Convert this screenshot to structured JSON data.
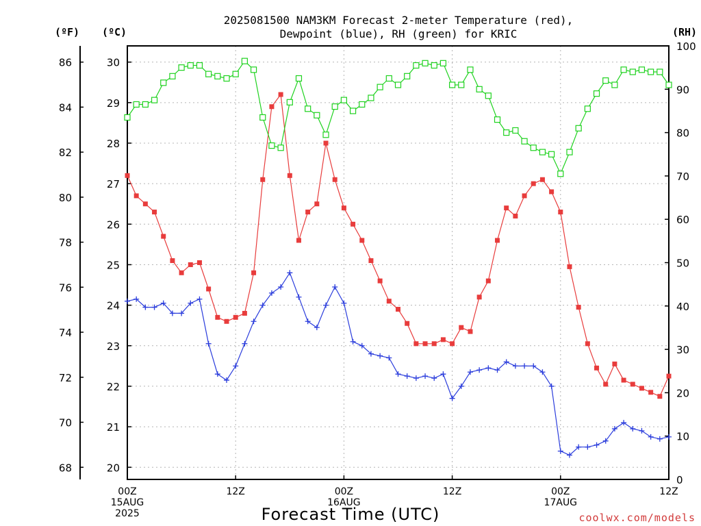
{
  "chart_data": {
    "type": "line",
    "title_line1": "2025081500 NAM3KM Forecast 2-meter Temperature (red),",
    "title_line2": "Dewpoint (blue), RH (green) for KRIC",
    "units": {
      "fahrenheit": "(ºF)",
      "celsius": "(ºC)",
      "rh": "(RH)"
    },
    "xlabel": "Forecast Time (UTC)",
    "credit": "coolwx.com/models",
    "x_range_hours": [
      0,
      60
    ],
    "x_ticks": [
      {
        "hour": 0,
        "lines": [
          "00Z",
          "15AUG",
          "2025"
        ]
      },
      {
        "hour": 12,
        "lines": [
          "12Z"
        ]
      },
      {
        "hour": 24,
        "lines": [
          "00Z",
          "16AUG"
        ]
      },
      {
        "hour": 36,
        "lines": [
          "12Z"
        ]
      },
      {
        "hour": 48,
        "lines": [
          "00Z",
          "17AUG"
        ]
      },
      {
        "hour": 60,
        "lines": [
          "12Z"
        ]
      }
    ],
    "celsius_axis": {
      "range": [
        19.7,
        30.4
      ],
      "ticks": [
        20,
        21,
        22,
        23,
        24,
        25,
        26,
        27,
        28,
        29,
        30
      ]
    },
    "fahrenheit_axis": {
      "ticks": [
        68,
        70,
        72,
        74,
        76,
        78,
        80,
        82,
        84,
        86
      ]
    },
    "rh_axis": {
      "range": [
        0,
        100
      ],
      "ticks": [
        0,
        10,
        20,
        30,
        40,
        50,
        60,
        70,
        80,
        90,
        100
      ]
    },
    "grid": true,
    "colors": {
      "temperature": "#e83c3c",
      "dewpoint": "#2a3cdc",
      "rh": "#1ed21e"
    },
    "series": [
      {
        "key": "temperature",
        "axis": "celsius",
        "marker": "filled-square",
        "values": [
          27.2,
          26.7,
          26.5,
          26.3,
          25.7,
          25.1,
          24.8,
          25.0,
          25.05,
          24.4,
          23.7,
          23.6,
          23.7,
          23.8,
          24.8,
          27.1,
          28.9,
          29.2,
          27.2,
          25.6,
          26.3,
          26.5,
          28.0,
          27.1,
          26.4,
          26.0,
          25.6,
          25.1,
          24.6,
          24.1,
          23.9,
          23.55,
          23.05,
          23.05,
          23.05,
          23.15,
          23.05,
          23.45,
          23.35,
          24.2,
          24.6,
          25.6,
          26.4,
          26.2,
          26.7,
          27.0,
          27.1,
          26.8,
          26.3,
          24.95,
          23.95,
          23.05,
          22.45,
          22.05,
          22.55,
          22.15,
          22.05,
          21.95,
          21.85,
          21.75,
          22.25
        ]
      },
      {
        "key": "dewpoint",
        "axis": "celsius",
        "marker": "plus",
        "values": [
          24.1,
          24.15,
          23.95,
          23.95,
          24.05,
          23.8,
          23.8,
          24.05,
          24.15,
          23.05,
          22.3,
          22.15,
          22.5,
          23.05,
          23.6,
          24.0,
          24.3,
          24.45,
          24.8,
          24.2,
          23.6,
          23.45,
          24.0,
          24.45,
          24.05,
          23.1,
          23.0,
          22.8,
          22.75,
          22.7,
          22.3,
          22.25,
          22.2,
          22.25,
          22.2,
          22.3,
          21.7,
          22.0,
          22.35,
          22.4,
          22.45,
          22.4,
          22.6,
          22.5,
          22.5,
          22.5,
          22.35,
          22.0,
          20.4,
          20.3,
          20.5,
          20.5,
          20.55,
          20.65,
          20.95,
          21.1,
          20.95,
          20.9,
          20.75,
          20.7,
          20.75
        ]
      },
      {
        "key": "rh",
        "axis": "rh",
        "marker": "open-square",
        "values": [
          83.5,
          86.5,
          86.5,
          87.5,
          91.5,
          93.0,
          95.0,
          95.5,
          95.5,
          93.5,
          93.0,
          92.5,
          93.5,
          96.5,
          94.5,
          83.5,
          77.0,
          76.5,
          87.0,
          92.5,
          85.5,
          84.0,
          79.5,
          86.0,
          87.5,
          85.0,
          86.5,
          88.0,
          90.5,
          92.5,
          91.0,
          93.0,
          95.5,
          96.0,
          95.5,
          96.0,
          91.0,
          91.0,
          94.5,
          90.0,
          88.5,
          83.0,
          80.0,
          80.5,
          78.0,
          76.5,
          75.5,
          75.0,
          70.5,
          75.5,
          81.0,
          85.5,
          89.0,
          92.0,
          91.0,
          94.5,
          94.0,
          94.5,
          94.0,
          94.0,
          91.0
        ]
      }
    ]
  }
}
